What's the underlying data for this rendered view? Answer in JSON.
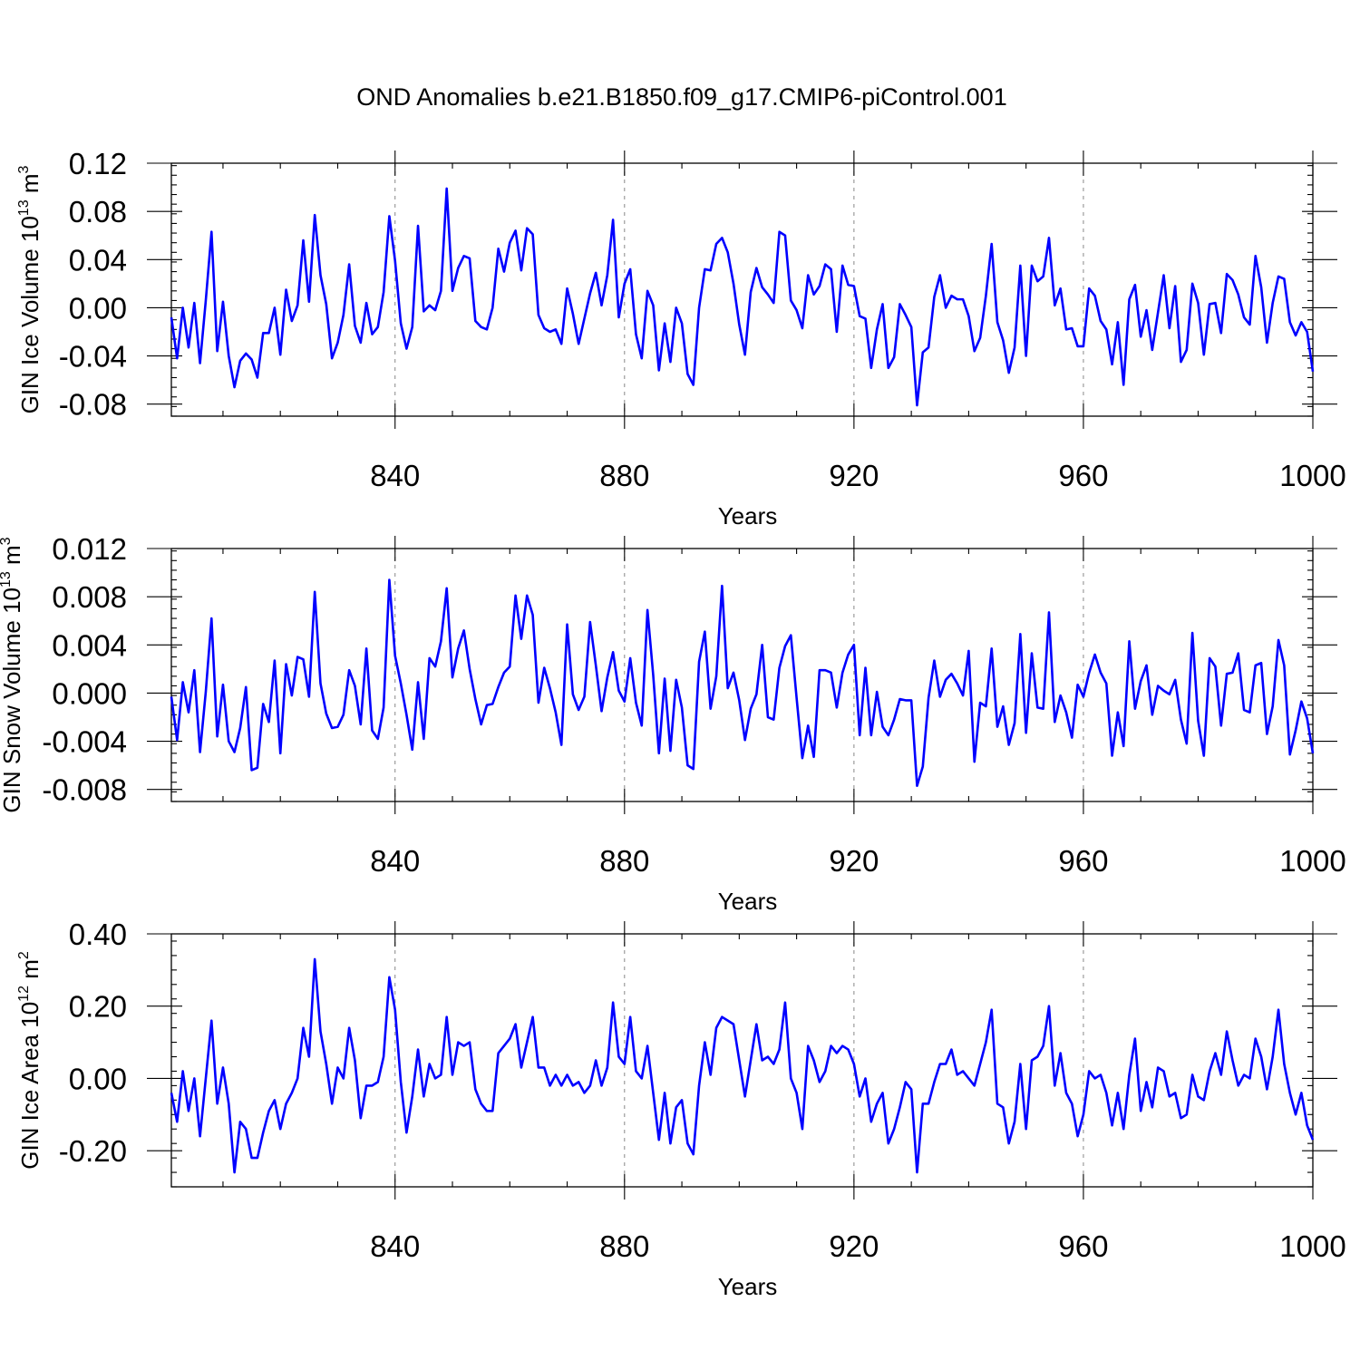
{
  "title": "OND Anomalies b.e21.B1850.f09_g17.CMIP6-piControl.001",
  "colors": {
    "series": "#0000ff",
    "grid": "#888888"
  },
  "chart_data": [
    {
      "type": "line",
      "title": "",
      "xlabel": "Years",
      "ylabel": {
        "prefix": "GIN Ice Volume 10",
        "exp": "13",
        "unit": " m",
        "unit_exp": "3"
      },
      "xlim": [
        801,
        1000
      ],
      "ylim": [
        -0.09,
        0.12
      ],
      "xticks": [
        840,
        880,
        920,
        960,
        1000
      ],
      "xtick_labels": [
        "840",
        "880",
        "920",
        "960",
        "1000"
      ],
      "yticks": [
        0.12,
        0.08,
        0.04,
        0.0,
        -0.04,
        -0.08
      ],
      "ytick_labels": [
        "0.12",
        "0.08",
        "0.04",
        "0.00",
        "-0.04",
        "-0.08"
      ],
      "x_start": 801,
      "series": [
        {
          "name": "GIN Ice Volume",
          "values": [
            -0.008,
            -0.042,
            0.0,
            -0.033,
            0.004,
            -0.046,
            0.006,
            0.063,
            -0.036,
            0.005,
            -0.04,
            -0.066,
            -0.044,
            -0.038,
            -0.043,
            -0.058,
            -0.021,
            -0.021,
            0.0,
            -0.039,
            0.015,
            -0.011,
            0.002,
            0.056,
            0.005,
            0.077,
            0.027,
            0.003,
            -0.042,
            -0.029,
            -0.006,
            0.036,
            -0.015,
            -0.029,
            0.004,
            -0.022,
            -0.016,
            0.013,
            0.076,
            0.039,
            -0.013,
            -0.034,
            -0.016,
            0.068,
            -0.003,
            0.002,
            -0.002,
            0.014,
            0.099,
            0.014,
            0.033,
            0.043,
            0.041,
            -0.011,
            -0.016,
            -0.018,
            0.0,
            0.049,
            0.03,
            0.054,
            0.064,
            0.031,
            0.066,
            0.061,
            -0.006,
            -0.017,
            -0.02,
            -0.018,
            -0.03,
            0.016,
            -0.005,
            -0.03,
            -0.009,
            0.012,
            0.029,
            0.002,
            0.027,
            0.073,
            -0.008,
            0.02,
            0.032,
            -0.022,
            -0.042,
            0.014,
            0.002,
            -0.052,
            -0.013,
            -0.045,
            0.0,
            -0.013,
            -0.055,
            -0.064,
            0.0,
            0.032,
            0.031,
            0.053,
            0.058,
            0.046,
            0.02,
            -0.014,
            -0.039,
            0.013,
            0.033,
            0.017,
            0.011,
            0.004,
            0.063,
            0.06,
            0.006,
            -0.002,
            -0.017,
            0.027,
            0.011,
            0.018,
            0.036,
            0.032,
            -0.02,
            0.035,
            0.019,
            0.018,
            -0.007,
            -0.009,
            -0.05,
            -0.018,
            0.003,
            -0.05,
            -0.041,
            0.003,
            -0.006,
            -0.016,
            -0.081,
            -0.037,
            -0.033,
            0.009,
            0.027,
            0.0,
            0.01,
            0.007,
            0.007,
            -0.007,
            -0.036,
            -0.025,
            0.01,
            0.053,
            -0.012,
            -0.027,
            -0.054,
            -0.033,
            0.035,
            -0.04,
            0.035,
            0.022,
            0.026,
            0.058,
            0.002,
            0.016,
            -0.018,
            -0.017,
            -0.032,
            -0.032,
            0.016,
            0.01,
            -0.011,
            -0.018,
            -0.047,
            -0.012,
            -0.064,
            0.007,
            0.019,
            -0.024,
            -0.002,
            -0.035,
            -0.004,
            0.027,
            -0.017,
            0.018,
            -0.045,
            -0.035,
            0.02,
            0.004,
            -0.039,
            0.003,
            0.004,
            -0.021,
            0.028,
            0.023,
            0.011,
            -0.008,
            -0.014,
            0.043,
            0.017,
            -0.029,
            0.004,
            0.026,
            0.024,
            -0.012,
            -0.023,
            -0.012,
            -0.02,
            -0.053
          ]
        }
      ]
    },
    {
      "type": "line",
      "title": "",
      "xlabel": "Years",
      "ylabel": {
        "prefix": "GIN Snow Volume 10",
        "exp": "13",
        "unit": " m",
        "unit_exp": "3"
      },
      "xlim": [
        801,
        1000
      ],
      "ylim": [
        -0.009,
        0.012
      ],
      "xticks": [
        840,
        880,
        920,
        960,
        1000
      ],
      "xtick_labels": [
        "840",
        "880",
        "920",
        "960",
        "1000"
      ],
      "yticks": [
        0.012,
        0.008,
        0.004,
        0.0,
        -0.004,
        -0.008
      ],
      "ytick_labels": [
        "0.012",
        "0.008",
        "0.004",
        "0.000",
        "-0.004",
        "-0.008"
      ],
      "x_start": 801,
      "series": [
        {
          "name": "GIN Snow Volume",
          "values": [
            -0.0003,
            -0.0039,
            0.0009,
            -0.0016,
            0.0019,
            -0.0049,
            0.0001,
            0.0062,
            -0.0036,
            0.0007,
            -0.004,
            -0.0049,
            -0.0029,
            0.0005,
            -0.0064,
            -0.0062,
            -0.0009,
            -0.0024,
            0.0027,
            -0.005,
            0.0024,
            -0.0002,
            0.003,
            0.0028,
            -0.0003,
            0.0084,
            0.0008,
            -0.0017,
            -0.0029,
            -0.0028,
            -0.0018,
            0.0019,
            0.0006,
            -0.0026,
            0.0037,
            -0.0031,
            -0.0038,
            -0.0012,
            0.0094,
            0.0031,
            0.0008,
            -0.0018,
            -0.0047,
            0.0009,
            -0.0038,
            0.0029,
            0.0022,
            0.0043,
            0.0087,
            0.0013,
            0.0037,
            0.0052,
            0.002,
            -0.0005,
            -0.0026,
            -0.001,
            -0.0009,
            0.0005,
            0.0017,
            0.0022,
            0.0081,
            0.0045,
            0.0081,
            0.0065,
            -0.0008,
            0.0021,
            0.0004,
            -0.0016,
            -0.0043,
            0.0057,
            -0.0001,
            -0.0014,
            -0.0003,
            0.0059,
            0.0023,
            -0.0015,
            0.0013,
            0.0034,
            0.0002,
            -0.0007,
            0.0029,
            -0.0008,
            -0.0027,
            0.0069,
            0.0015,
            -0.005,
            0.0012,
            -0.0048,
            0.0011,
            -0.0012,
            -0.006,
            -0.0063,
            0.0026,
            0.0051,
            -0.0013,
            0.0014,
            0.0089,
            0.0004,
            0.0017,
            -0.0006,
            -0.0039,
            -0.0013,
            -0.0001,
            0.004,
            -0.002,
            -0.0022,
            0.0021,
            0.0039,
            0.0048,
            -0.0004,
            -0.0054,
            -0.0027,
            -0.0053,
            0.0019,
            0.0019,
            0.0017,
            -0.0012,
            0.0017,
            0.0032,
            0.004,
            -0.0035,
            0.0021,
            -0.0035,
            0.0001,
            -0.0028,
            -0.0035,
            -0.0022,
            -0.0005,
            -0.0006,
            -0.0006,
            -0.0077,
            -0.0061,
            -0.0004,
            0.0027,
            -0.0003,
            0.0011,
            0.0016,
            0.0008,
            -0.0002,
            0.0035,
            -0.0057,
            -0.0008,
            -0.0011,
            0.0037,
            -0.0028,
            -0.0011,
            -0.0043,
            -0.0025,
            0.0049,
            -0.0033,
            0.0033,
            -0.0012,
            -0.0013,
            0.0067,
            -0.0024,
            -0.0002,
            -0.0016,
            -0.0037,
            0.0007,
            -0.0003,
            0.0017,
            0.0032,
            0.0017,
            0.0008,
            -0.0052,
            -0.0016,
            -0.0044,
            0.0043,
            -0.0013,
            0.001,
            0.0023,
            -0.0018,
            0.0006,
            0.0002,
            -0.0001,
            0.0011,
            -0.0022,
            -0.0042,
            0.005,
            -0.0023,
            -0.0052,
            0.0029,
            0.0022,
            -0.0027,
            0.0016,
            0.0017,
            0.0033,
            -0.0014,
            -0.0016,
            0.0023,
            0.0025,
            -0.0034,
            -0.0011,
            0.0044,
            0.0023,
            -0.0051,
            -0.0031,
            -0.0007,
            -0.0021,
            -0.005
          ]
        }
      ]
    },
    {
      "type": "line",
      "title": "",
      "xlabel": "Years",
      "ylabel": {
        "prefix": "GIN Ice Area 10",
        "exp": "12",
        "unit": " m",
        "unit_exp": "2"
      },
      "xlim": [
        801,
        1000
      ],
      "ylim": [
        -0.3,
        0.4
      ],
      "xticks": [
        840,
        880,
        920,
        960,
        1000
      ],
      "xtick_labels": [
        "840",
        "880",
        "920",
        "960",
        "1000"
      ],
      "yticks": [
        0.4,
        0.2,
        0.0,
        -0.2
      ],
      "ytick_labels": [
        "0.40",
        "0.20",
        "0.00",
        "-0.20"
      ],
      "x_start": 801,
      "series": [
        {
          "name": "GIN Ice Area",
          "values": [
            -0.04,
            -0.12,
            0.02,
            -0.09,
            0.0,
            -0.16,
            0.0,
            0.16,
            -0.07,
            0.03,
            -0.07,
            -0.26,
            -0.12,
            -0.14,
            -0.22,
            -0.22,
            -0.15,
            -0.09,
            -0.06,
            -0.14,
            -0.07,
            -0.04,
            0.0,
            0.14,
            0.06,
            0.33,
            0.13,
            0.04,
            -0.07,
            0.03,
            0.0,
            0.14,
            0.05,
            -0.11,
            -0.02,
            -0.02,
            -0.01,
            0.06,
            0.28,
            0.19,
            -0.01,
            -0.15,
            -0.05,
            0.08,
            -0.05,
            0.04,
            0.0,
            0.01,
            0.17,
            0.01,
            0.1,
            0.09,
            0.1,
            -0.03,
            -0.07,
            -0.09,
            -0.09,
            0.07,
            0.09,
            0.11,
            0.15,
            0.03,
            0.1,
            0.17,
            0.03,
            0.03,
            -0.02,
            0.01,
            -0.02,
            0.01,
            -0.02,
            -0.01,
            -0.04,
            -0.02,
            0.05,
            -0.02,
            0.03,
            0.21,
            0.06,
            0.04,
            0.17,
            0.02,
            0.0,
            0.09,
            -0.04,
            -0.17,
            -0.04,
            -0.18,
            -0.08,
            -0.06,
            -0.18,
            -0.21,
            -0.02,
            0.1,
            0.01,
            0.14,
            0.17,
            0.16,
            0.15,
            0.05,
            -0.05,
            0.05,
            0.15,
            0.05,
            0.06,
            0.04,
            0.08,
            0.21,
            0.0,
            -0.04,
            -0.14,
            0.09,
            0.05,
            -0.01,
            0.02,
            0.09,
            0.07,
            0.09,
            0.08,
            0.04,
            -0.05,
            0.0,
            -0.12,
            -0.07,
            -0.04,
            -0.18,
            -0.14,
            -0.08,
            -0.01,
            -0.03,
            -0.26,
            -0.07,
            -0.07,
            -0.01,
            0.04,
            0.04,
            0.08,
            0.01,
            0.02,
            0.0,
            -0.02,
            0.04,
            0.1,
            0.19,
            -0.07,
            -0.08,
            -0.18,
            -0.12,
            0.04,
            -0.14,
            0.05,
            0.06,
            0.09,
            0.2,
            -0.02,
            0.07,
            -0.04,
            -0.07,
            -0.16,
            -0.1,
            0.02,
            0.0,
            0.01,
            -0.04,
            -0.13,
            -0.04,
            -0.14,
            0.01,
            0.11,
            -0.09,
            -0.01,
            -0.08,
            0.03,
            0.02,
            -0.05,
            -0.04,
            -0.11,
            -0.1,
            0.01,
            -0.05,
            -0.06,
            0.02,
            0.07,
            0.01,
            0.13,
            0.05,
            -0.02,
            0.01,
            0.0,
            0.11,
            0.06,
            -0.03,
            0.06,
            0.19,
            0.04,
            -0.04,
            -0.1,
            -0.04,
            -0.13,
            -0.17
          ]
        }
      ]
    }
  ]
}
